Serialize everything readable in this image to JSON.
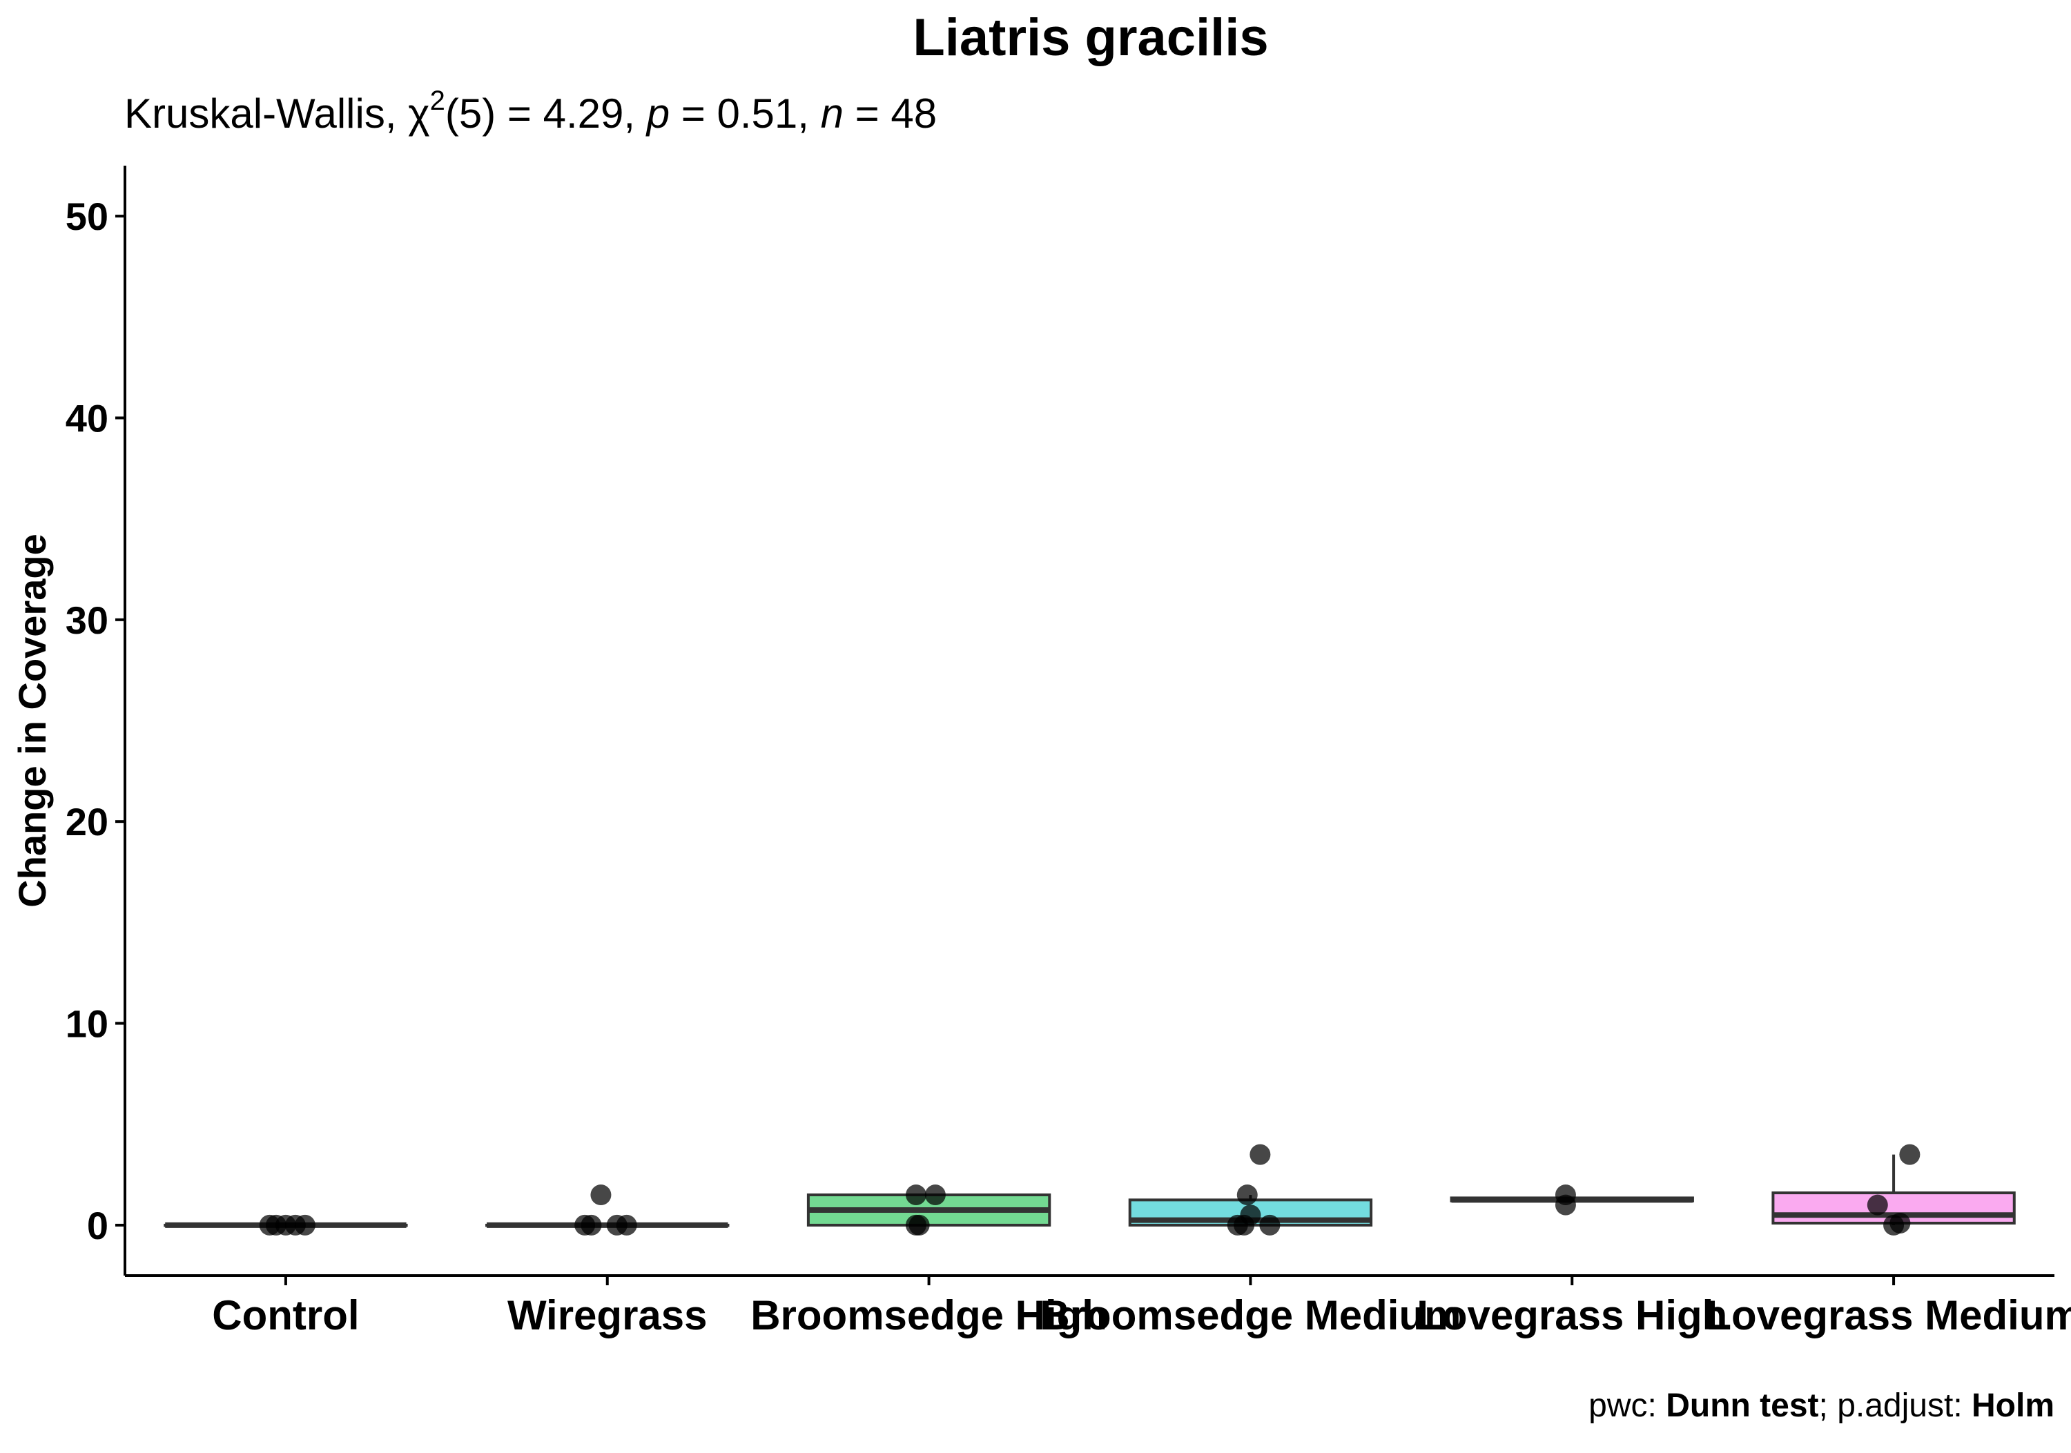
{
  "chart_data": {
    "type": "box",
    "title": "Liatris gracilis",
    "subtitle": {
      "prefix": "Kruskal-Wallis, ",
      "chi": "χ",
      "chi_sup": "2",
      "df_text": "(5) = 4.29, ",
      "p_symbol": "p",
      "p_text": " = 0.51, ",
      "n_symbol": "n",
      "n_text": " = 48"
    },
    "ylabel": "Change in Coverage",
    "ylim": [
      -2.5,
      52.5
    ],
    "yticks": [
      0,
      10,
      20,
      30,
      40,
      50
    ],
    "categories": [
      "Control",
      "Wiregrass",
      "Broomsedge High",
      "Broomsedge Medium",
      "Lovegrass High",
      "Lovegrass Medium"
    ],
    "box_colors": [
      "#f8766d",
      "#b79f00",
      "#00ba38",
      "#00bfc4",
      "#619cff",
      "#f564e3"
    ],
    "boxes": [
      {
        "q1": 0,
        "median": 0,
        "q3": 0,
        "lower": 0,
        "upper": 0
      },
      {
        "q1": 0,
        "median": 0,
        "q3": 0,
        "lower": 0,
        "upper": 0
      },
      {
        "q1": 0,
        "median": 0.75,
        "q3": 1.5,
        "lower": 0,
        "upper": 1.5
      },
      {
        "q1": 0,
        "median": 0.25,
        "q3": 1.25,
        "lower": 0,
        "upper": 1.5
      },
      {
        "q1": 1.2,
        "median": 1.25,
        "q3": 1.35,
        "lower": 1.2,
        "upper": 1.35
      },
      {
        "q1": 0.1,
        "median": 0.5,
        "q3": 1.6,
        "lower": 0,
        "upper": 3.5
      }
    ],
    "points": [
      [
        {
          "x": -0.05,
          "y": 0
        },
        {
          "x": 0.0,
          "y": 0
        },
        {
          "x": 0.03,
          "y": 0
        },
        {
          "x": 0.06,
          "y": 0
        },
        {
          "x": -0.03,
          "y": 0
        }
      ],
      [
        {
          "x": -0.05,
          "y": 0
        },
        {
          "x": -0.02,
          "y": 1.5
        },
        {
          "x": 0.03,
          "y": 0
        },
        {
          "x": 0.06,
          "y": 0
        },
        {
          "x": -0.07,
          "y": 0
        }
      ],
      [
        {
          "x": -0.04,
          "y": 1.5
        },
        {
          "x": 0.02,
          "y": 1.5
        },
        {
          "x": -0.04,
          "y": 0
        },
        {
          "x": -0.03,
          "y": 0
        }
      ],
      [
        {
          "x": 0.03,
          "y": 3.5
        },
        {
          "x": -0.01,
          "y": 1.5
        },
        {
          "x": 0.0,
          "y": 0.5
        },
        {
          "x": -0.04,
          "y": 0
        },
        {
          "x": -0.02,
          "y": 0
        },
        {
          "x": 0.06,
          "y": 0
        }
      ],
      [
        {
          "x": -0.02,
          "y": 1.5
        },
        {
          "x": -0.02,
          "y": 1.0
        }
      ],
      [
        {
          "x": 0.05,
          "y": 3.5
        },
        {
          "x": -0.05,
          "y": 1.0
        },
        {
          "x": 0.02,
          "y": 0.1
        },
        {
          "x": 0.0,
          "y": 0
        }
      ]
    ],
    "caption": {
      "pwc_label": "pwc: ",
      "pwc_method": "Dunn test",
      "sep": "; p.adjust: ",
      "adjust_method": "Holm"
    },
    "grid": false,
    "legend": "none"
  }
}
